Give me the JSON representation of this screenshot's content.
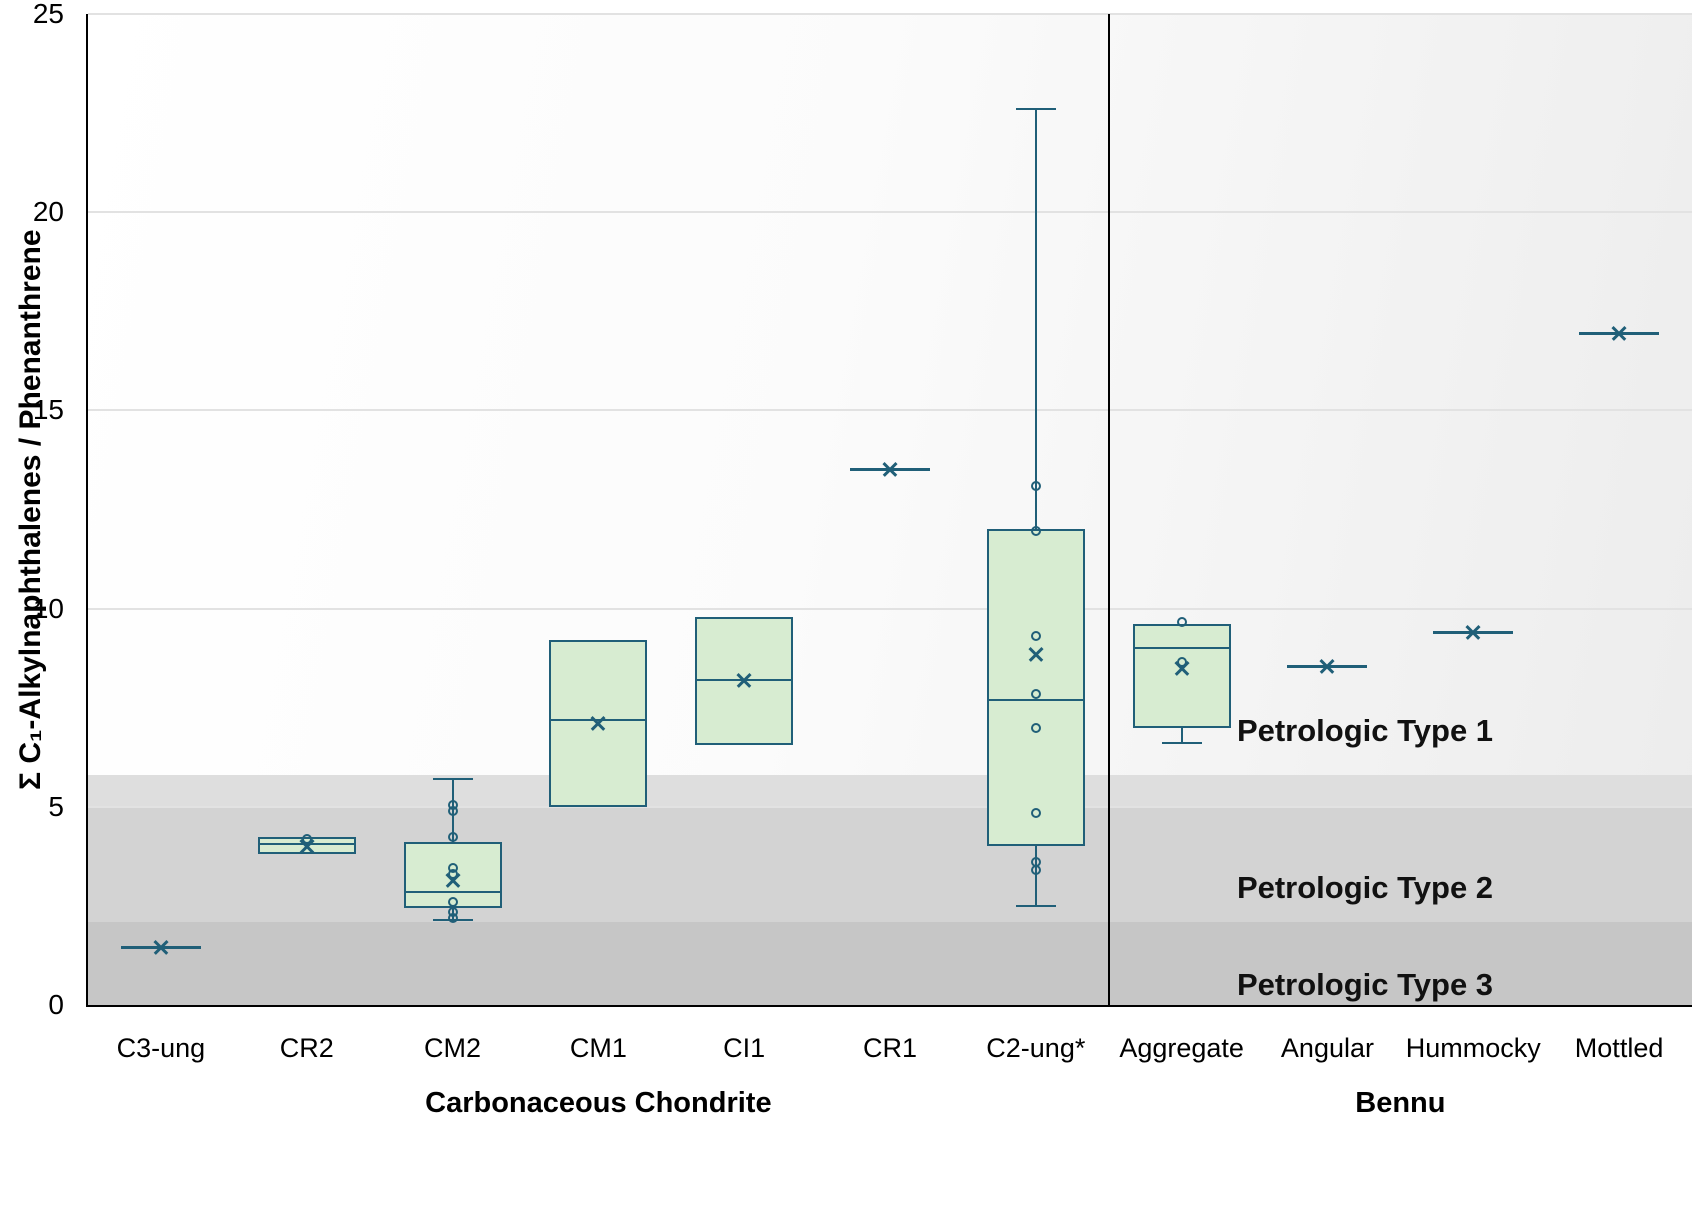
{
  "chart_data": {
    "type": "box",
    "title": "",
    "ylabel": "Σ C₁-Alkylnaphthalenes / Phenanthrene",
    "ylim": [
      0,
      25
    ],
    "yticks": [
      0,
      5,
      10,
      15,
      20,
      25
    ],
    "grid": true,
    "stroke": "#205f78",
    "box_fill": "#d7ecd1",
    "divider_after_index": 6,
    "bands": [
      {
        "name": "petrologic-type-2-upper",
        "from": 5.0,
        "to": 5.8,
        "color": "#dedede"
      },
      {
        "name": "petrologic-type-2",
        "from": 2.1,
        "to": 5.0,
        "color": "#d3d3d3"
      },
      {
        "name": "petrologic-type-3",
        "from": 0,
        "to": 2.1,
        "color": "#c6c6c6"
      }
    ],
    "band_labels": [
      {
        "text": "Petrologic Type 1",
        "value": 6.9
      },
      {
        "text": "Petrologic Type 2",
        "value": 2.95
      },
      {
        "text": "Petrologic Type 3",
        "value": 0.5
      }
    ],
    "groups": [
      {
        "label": "Carbonaceous Chondrite",
        "from": 0,
        "to": 6
      },
      {
        "label": "Bennu",
        "from": 7,
        "to": 10
      }
    ],
    "categories": [
      {
        "label": "C3-ung",
        "kind": "line",
        "mean": 1.45
      },
      {
        "label": "CR2",
        "kind": "box",
        "q1": 3.8,
        "median": 4.05,
        "q3": 4.25,
        "mean": 4.0,
        "points": [
          4.2
        ]
      },
      {
        "label": "CM2",
        "kind": "box",
        "q1": 2.45,
        "median": 2.85,
        "q3": 4.1,
        "mean": 3.15,
        "whisker_low": 2.15,
        "whisker_high": 5.7,
        "points": [
          5.05,
          4.9,
          4.25,
          3.45,
          3.3,
          2.6,
          2.35,
          2.2
        ]
      },
      {
        "label": "CM1",
        "kind": "box",
        "q1": 5.0,
        "median": 7.2,
        "q3": 9.2,
        "mean": 7.1
      },
      {
        "label": "CI1",
        "kind": "box",
        "q1": 6.55,
        "median": 8.2,
        "q3": 9.8,
        "mean": 8.2
      },
      {
        "label": "CR1",
        "kind": "line",
        "mean": 13.5
      },
      {
        "label": "C2-ung*",
        "kind": "box",
        "q1": 4.0,
        "median": 7.7,
        "q3": 12.0,
        "mean": 8.85,
        "whisker_low": 2.5,
        "whisker_high": 22.6,
        "points": [
          13.1,
          11.95,
          9.3,
          7.85,
          7.0,
          4.85,
          3.6,
          3.4
        ]
      },
      {
        "label": "Aggregate",
        "kind": "box",
        "q1": 7.0,
        "median": 9.0,
        "q3": 9.6,
        "mean": 8.5,
        "whisker_low": 6.6,
        "points": [
          9.65,
          8.65
        ]
      },
      {
        "label": "Angular",
        "kind": "line",
        "mean": 8.55
      },
      {
        "label": "Hummocky",
        "kind": "line",
        "mean": 9.4
      },
      {
        "label": "Mottled",
        "kind": "line",
        "mean": 16.95
      }
    ]
  }
}
